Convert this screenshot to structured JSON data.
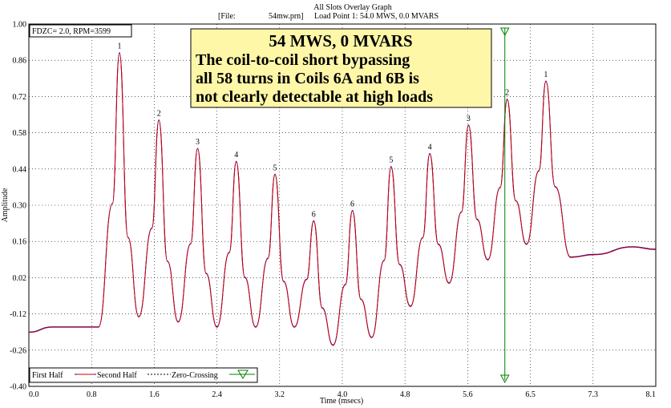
{
  "header": {
    "title": "All Slots Overlay Graph",
    "file_label": "[File:",
    "file_name": "54mw.prn]",
    "load_point": "Load Point 1:  54.0 MWS,   0.0 MVARS"
  },
  "info_box": "FDZC= 2.0, RPM=3599",
  "annotation": {
    "line1": "54 MWS, 0 MVARS",
    "line2": "The coil-to-coil short bypassing",
    "line3": "all 58 turns in Coils 6A and 6B is",
    "line4": "not clearly detectable at high loads"
  },
  "legend": {
    "first_half": "First Half",
    "second_half": "Second Half",
    "zero_crossing": "Zero-Crossing"
  },
  "colors": {
    "first_half": "#0000cc",
    "second_half": "#cc0000",
    "zero_crossing": "#008000",
    "annotation_bg": "#fff7a8"
  },
  "chart_data": {
    "type": "line",
    "title": "All Slots Overlay Graph",
    "xlabel": "Time (msecs)",
    "ylabel": "Amplitude",
    "xlim": [
      0.0,
      8.1
    ],
    "ylim": [
      -0.4,
      1.0
    ],
    "grid": true,
    "legend_position": "bottom-left",
    "x_ticks": [
      "0.0",
      "0.8",
      "1.6",
      "2.4",
      "3.2",
      "4.0",
      "4.8",
      "5.6",
      "6.5",
      "7.3",
      "8.1"
    ],
    "y_ticks": [
      "1.00",
      "0.86",
      "0.72",
      "0.58",
      "0.44",
      "0.30",
      "0.16",
      "0.02",
      "-0.12",
      "-0.26",
      "-0.40"
    ],
    "zero_crossing_x": 6.15,
    "baseline_points": [
      [
        0.0,
        -0.19
      ],
      [
        0.3,
        -0.17
      ],
      [
        0.9,
        -0.17
      ],
      [
        7.0,
        0.1
      ],
      [
        7.3,
        0.11
      ],
      [
        7.8,
        0.14
      ],
      [
        8.1,
        0.13
      ]
    ],
    "peaks": [
      {
        "label": "1",
        "x": 1.17,
        "y": 0.89
      },
      {
        "label": "2",
        "x": 1.68,
        "y": 0.63
      },
      {
        "label": "3",
        "x": 2.18,
        "y": 0.52
      },
      {
        "label": "4",
        "x": 2.68,
        "y": 0.47
      },
      {
        "label": "5",
        "x": 3.18,
        "y": 0.42
      },
      {
        "label": "6",
        "x": 3.68,
        "y": 0.24
      },
      {
        "label": "6",
        "x": 4.18,
        "y": 0.28
      },
      {
        "label": "5",
        "x": 4.68,
        "y": 0.45
      },
      {
        "label": "4",
        "x": 5.18,
        "y": 0.5
      },
      {
        "label": "3",
        "x": 5.68,
        "y": 0.61
      },
      {
        "label": "2",
        "x": 6.18,
        "y": 0.71
      },
      {
        "label": "1",
        "x": 6.68,
        "y": 0.78
      }
    ],
    "troughs": [
      {
        "x": 1.42,
        "y": -0.13
      },
      {
        "x": 1.93,
        "y": -0.15
      },
      {
        "x": 2.43,
        "y": -0.17
      },
      {
        "x": 2.93,
        "y": -0.17
      },
      {
        "x": 3.43,
        "y": -0.17
      },
      {
        "x": 3.93,
        "y": -0.24
      },
      {
        "x": 4.43,
        "y": -0.21
      },
      {
        "x": 4.93,
        "y": -0.09
      },
      {
        "x": 5.43,
        "y": 0.0
      },
      {
        "x": 5.93,
        "y": 0.09
      },
      {
        "x": 6.43,
        "y": 0.15
      }
    ],
    "series": [
      {
        "name": "First Half"
      },
      {
        "name": "Second Half"
      }
    ]
  }
}
